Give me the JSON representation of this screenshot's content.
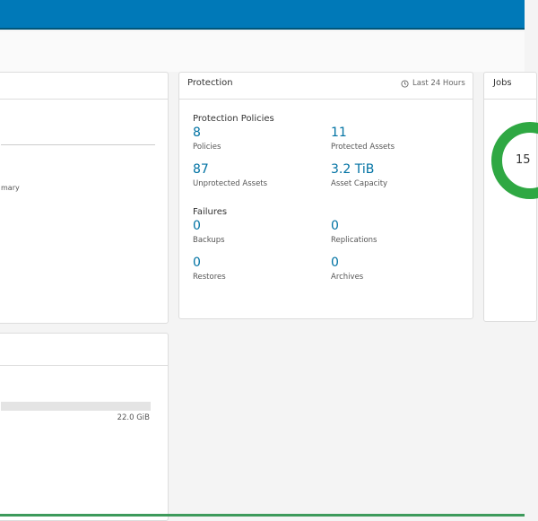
{
  "summary_card": {
    "partial_label": "mary"
  },
  "protection_card": {
    "title": "Protection",
    "period": "Last 24 Hours",
    "policies_section": {
      "title": "Protection Policies",
      "items": [
        {
          "value": "8",
          "label": "Policies"
        },
        {
          "value": "11",
          "label": "Protected Assets"
        },
        {
          "value": "87",
          "label": "Unprotected Assets"
        },
        {
          "value": "3.2 TiB",
          "label": "Asset Capacity"
        }
      ]
    },
    "failures_section": {
      "title": "Failures",
      "items": [
        {
          "value": "0",
          "label": "Backups"
        },
        {
          "value": "0",
          "label": "Replications"
        },
        {
          "value": "0",
          "label": "Restores"
        },
        {
          "value": "0",
          "label": "Archives"
        }
      ]
    }
  },
  "jobs_card": {
    "title": "Jobs",
    "donut_center": "15"
  },
  "storage_card": {
    "capacity": "22.0 GiB"
  }
}
